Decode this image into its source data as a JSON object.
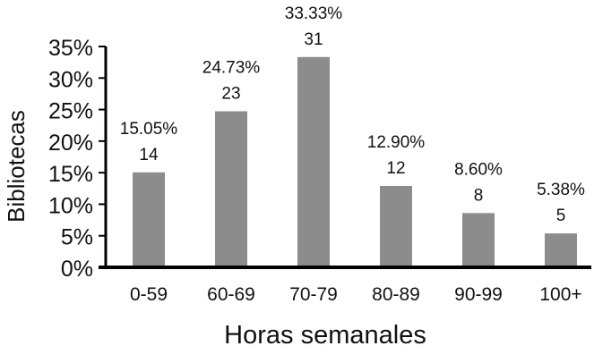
{
  "chart_data": {
    "type": "bar",
    "categories": [
      "0-59",
      "60-69",
      "70-79",
      "80-89",
      "90-99",
      "100+"
    ],
    "values": [
      15.05,
      24.73,
      33.33,
      12.9,
      8.6,
      5.38
    ],
    "counts": [
      14,
      23,
      31,
      12,
      8,
      5
    ],
    "percent_labels": [
      "15.05%",
      "24.73%",
      "33.33%",
      "12.90%",
      "8.60%",
      "5.38%"
    ],
    "count_labels": [
      "14",
      "23",
      "31",
      "12",
      "8",
      "5"
    ],
    "y_ticks": [
      0,
      5,
      10,
      15,
      20,
      25,
      30,
      35
    ],
    "y_tick_labels": [
      "0%",
      "5%",
      "10%",
      "15%",
      "20%",
      "25%",
      "30%",
      "35%"
    ],
    "ylim": [
      0,
      35
    ],
    "title": "",
    "xlabel": "Horas semanales",
    "ylabel": "Bibliotecas",
    "grid": false,
    "bar_color": "#8c8c8c",
    "axis_color": "#000000"
  }
}
